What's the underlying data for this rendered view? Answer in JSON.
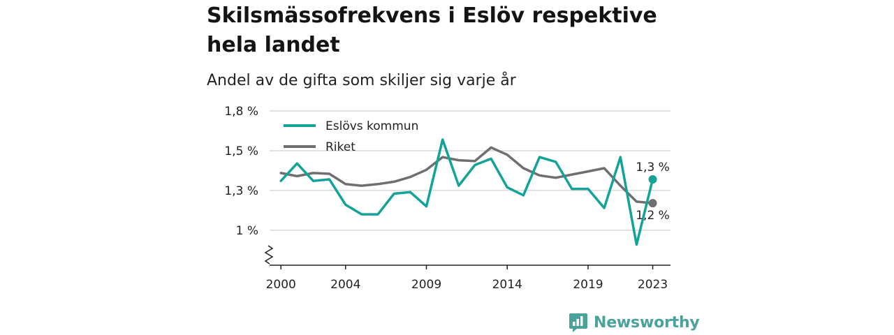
{
  "title": "Skilsmässofrekvens i Eslöv respektive hela landet",
  "subtitle": "Andel av de gifta som skiljer sig varje år",
  "brand": {
    "name": "Newsworthy",
    "color": "#4aa39a",
    "icon": "newsworthy-logo-icon"
  },
  "colors": {
    "eslov": "#14a398",
    "riket": "#6e6e73",
    "grid": "#d9d9d9",
    "axis": "#222222"
  },
  "chart_data": {
    "type": "line",
    "title": "Skilsmässofrekvens i Eslöv respektive hela landet",
    "subtitle": "Andel av de gifta som skiljer sig varje år",
    "xlabel": "",
    "ylabel": "",
    "x": [
      2000,
      2001,
      2002,
      2003,
      2004,
      2005,
      2006,
      2007,
      2008,
      2009,
      2010,
      2011,
      2012,
      2013,
      2014,
      2015,
      2016,
      2017,
      2018,
      2019,
      2020,
      2021,
      2022,
      2023
    ],
    "x_tick_values": [
      2000,
      2004,
      2009,
      2014,
      2019,
      2023
    ],
    "x_tick_labels": [
      "2000",
      "2004",
      "2009",
      "2014",
      "2019",
      "2023"
    ],
    "y_tick_values": [
      1.0,
      1.25,
      1.5,
      1.75
    ],
    "y_tick_labels": [
      "1 %",
      "1,3 %",
      "1,5 %",
      "1,8 %"
    ],
    "ylim": [
      0.78,
      1.75
    ],
    "xlim": [
      1999.3,
      2024.1
    ],
    "y_axis_break": true,
    "grid": true,
    "legend_position": "top-left",
    "series": [
      {
        "name": "Eslövs kommun",
        "color": "#14a398",
        "values": [
          1.31,
          1.42,
          1.31,
          1.32,
          1.16,
          1.1,
          1.1,
          1.23,
          1.24,
          1.15,
          1.57,
          1.28,
          1.41,
          1.45,
          1.27,
          1.22,
          1.46,
          1.43,
          1.26,
          1.26,
          1.14,
          1.46,
          0.91,
          1.32
        ],
        "end_label": "1,3 %"
      },
      {
        "name": "Riket",
        "color": "#6e6e73",
        "values": [
          1.36,
          1.34,
          1.36,
          1.355,
          1.29,
          1.28,
          1.29,
          1.305,
          1.335,
          1.38,
          1.46,
          1.44,
          1.435,
          1.52,
          1.475,
          1.39,
          1.345,
          1.33,
          1.35,
          1.37,
          1.39,
          1.28,
          1.18,
          1.17
        ],
        "end_label": "1,2 %"
      }
    ]
  }
}
